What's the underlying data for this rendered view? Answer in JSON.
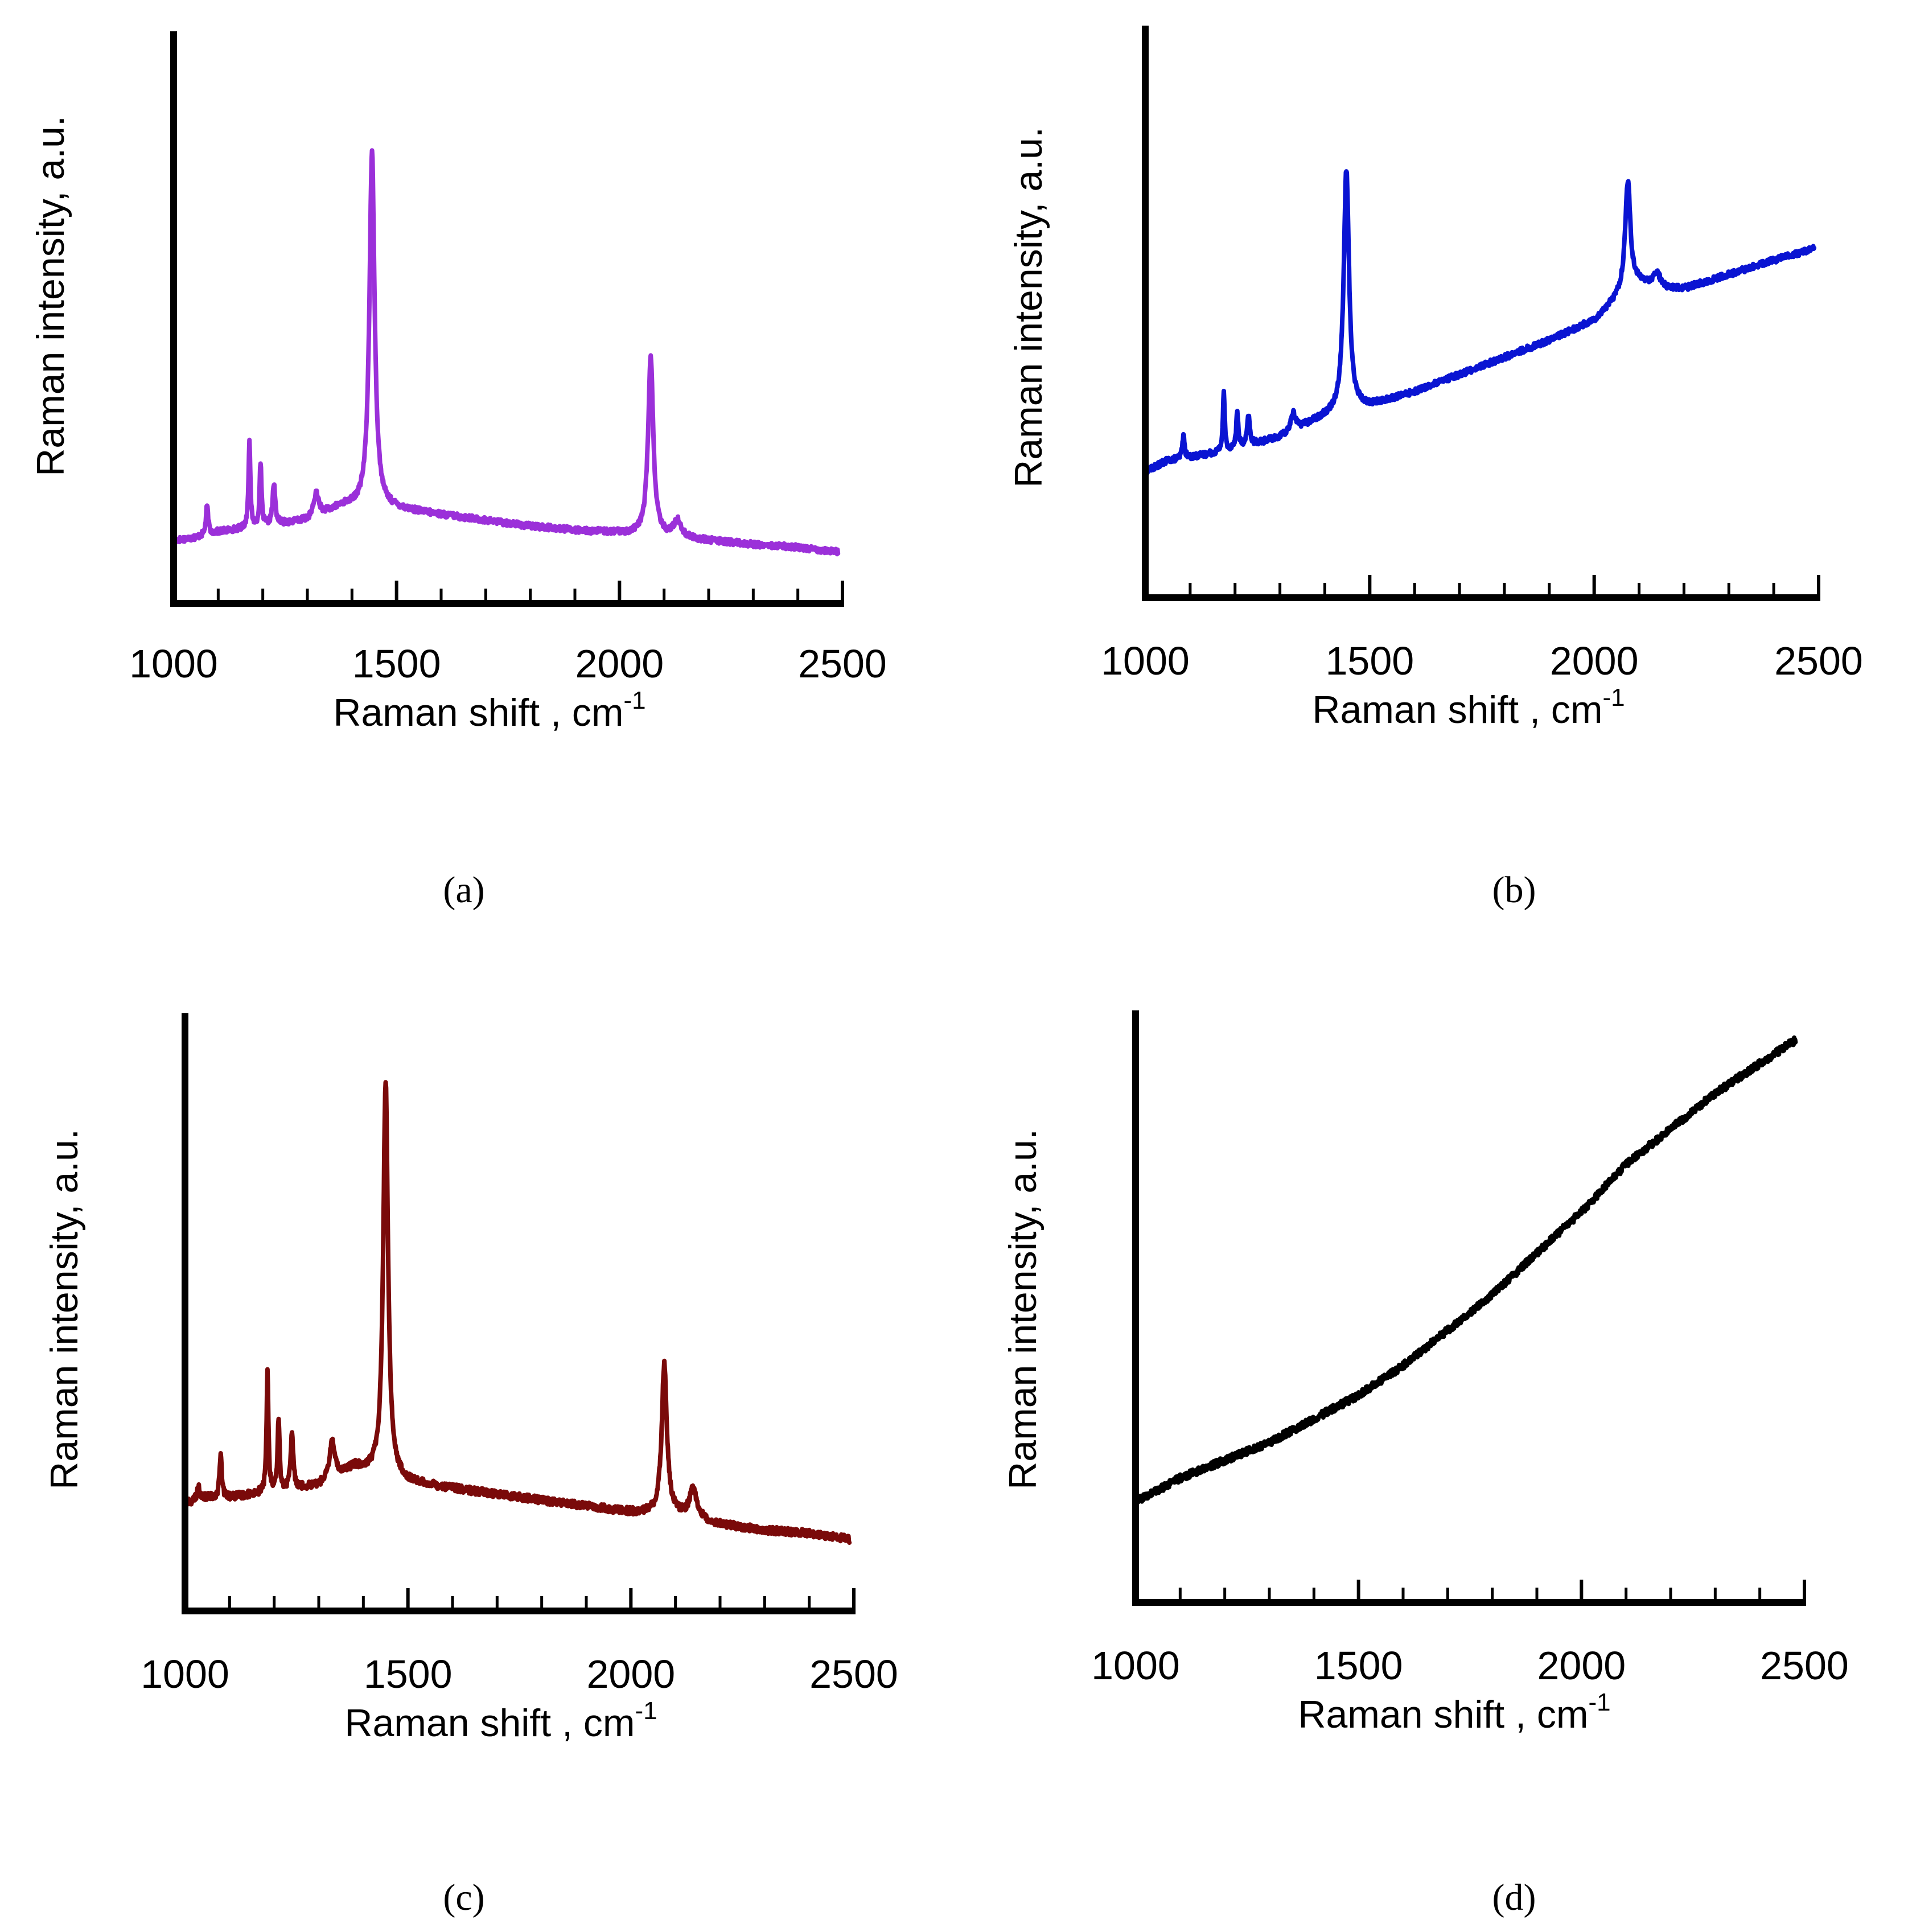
{
  "figure": {
    "panels": [
      "(a)",
      "(b)",
      "(c)",
      "(d)"
    ]
  },
  "chart_data": [
    {
      "type": "line",
      "panel_label": "(a)",
      "panel_letter": "a",
      "color": "#9b30d9",
      "xlabel_main": "Raman shift , cm",
      "xlabel_sup": "-1",
      "ylabel": "Raman intensity, a.u.",
      "xlim": [
        1000,
        2500
      ],
      "ylim": [
        0,
        100
      ],
      "xticks": [
        1000,
        1500,
        2000,
        2500
      ],
      "minor_tick_step": 100,
      "y_tick_labels": false,
      "baseline": [
        [
          1000,
          11
        ],
        [
          1050,
          11.5
        ],
        [
          1100,
          12.5
        ],
        [
          1200,
          13.5
        ],
        [
          1300,
          14.5
        ],
        [
          1380,
          17
        ],
        [
          1500,
          16.5
        ],
        [
          1600,
          15.5
        ],
        [
          1700,
          14.5
        ],
        [
          1800,
          13.5
        ],
        [
          1900,
          12.8
        ],
        [
          2000,
          12.3
        ],
        [
          2100,
          11.6
        ],
        [
          2200,
          11
        ],
        [
          2300,
          10.3
        ],
        [
          2400,
          9.8
        ],
        [
          2490,
          9
        ]
      ],
      "peaks": [
        [
          1075,
          5,
          3
        ],
        [
          1170,
          15,
          2.5
        ],
        [
          1195,
          11,
          2.5
        ],
        [
          1225,
          7,
          3.5
        ],
        [
          1320,
          4,
          7
        ],
        [
          1445,
          62,
          7
        ],
        [
          2070,
          31,
          7
        ],
        [
          2130,
          3,
          10
        ]
      ],
      "noise": 0.5
    },
    {
      "type": "line",
      "panel_label": "(b)",
      "panel_letter": "b",
      "color": "#0a14d2",
      "xlabel_main": "Raman shift , cm",
      "xlabel_sup": "-1",
      "ylabel": "Raman intensity, a.u.",
      "xlim": [
        1000,
        2500
      ],
      "ylim": [
        0,
        100
      ],
      "xticks": [
        1000,
        1500,
        2000,
        2500
      ],
      "minor_tick_step": 100,
      "y_tick_labels": false,
      "baseline": [
        [
          1000,
          22
        ],
        [
          1050,
          24
        ],
        [
          1100,
          24.5
        ],
        [
          1200,
          26
        ],
        [
          1300,
          28
        ],
        [
          1380,
          31
        ],
        [
          1450,
          33
        ],
        [
          1500,
          33.5
        ],
        [
          1600,
          36
        ],
        [
          1700,
          39
        ],
        [
          1800,
          42
        ],
        [
          1900,
          45
        ],
        [
          2000,
          48.5
        ],
        [
          2060,
          53
        ],
        [
          2100,
          55
        ],
        [
          2150,
          54
        ],
        [
          2200,
          54
        ],
        [
          2300,
          56.5
        ],
        [
          2400,
          59
        ],
        [
          2490,
          61
        ]
      ],
      "peaks": [
        [
          1085,
          4,
          3
        ],
        [
          1175,
          10,
          2.5
        ],
        [
          1205,
          6,
          3
        ],
        [
          1230,
          5,
          3.5
        ],
        [
          1330,
          3,
          7
        ],
        [
          1448,
          42,
          7
        ],
        [
          2075,
          19,
          7
        ],
        [
          2140,
          2.5,
          10
        ]
      ],
      "noise": 0.5
    },
    {
      "type": "line",
      "panel_label": "(c)",
      "panel_letter": "c",
      "color": "#7a0a0a",
      "xlabel_main": "Raman shift , cm",
      "xlabel_sup": "-1",
      "ylabel": "Raman intensity, a.u.",
      "xlim": [
        1000,
        2500
      ],
      "ylim": [
        0,
        100
      ],
      "xticks": [
        1000,
        1500,
        2000,
        2500
      ],
      "minor_tick_step": 100,
      "y_tick_labels": false,
      "baseline": [
        [
          1000,
          18
        ],
        [
          1050,
          19
        ],
        [
          1100,
          19
        ],
        [
          1200,
          20
        ],
        [
          1300,
          21
        ],
        [
          1380,
          24
        ],
        [
          1500,
          21.5
        ],
        [
          1600,
          20.5
        ],
        [
          1700,
          19.5
        ],
        [
          1800,
          18.5
        ],
        [
          1900,
          17.5
        ],
        [
          2000,
          16.5
        ],
        [
          2100,
          16
        ],
        [
          2200,
          14.5
        ],
        [
          2300,
          13.5
        ],
        [
          2400,
          13
        ],
        [
          2490,
          12
        ]
      ],
      "peaks": [
        [
          1030,
          2,
          4
        ],
        [
          1080,
          7,
          3
        ],
        [
          1185,
          20,
          2.5
        ],
        [
          1210,
          12,
          2.5
        ],
        [
          1240,
          9,
          3.5
        ],
        [
          1330,
          6,
          7
        ],
        [
          1450,
          66,
          6.5
        ],
        [
          2075,
          25,
          7
        ],
        [
          2140,
          5,
          10
        ]
      ],
      "noise": 0.6
    },
    {
      "type": "line",
      "panel_label": "(d)",
      "panel_letter": "d",
      "color": "#000000",
      "xlabel_main": "Raman shift , cm",
      "xlabel_sup": "-1",
      "ylabel": "Raman intensity, a.u.",
      "xlim": [
        1000,
        2500
      ],
      "ylim": [
        0,
        100
      ],
      "xticks": [
        1000,
        1500,
        2000,
        2500
      ],
      "minor_tick_step": 100,
      "y_tick_labels": false,
      "baseline": [
        [
          1000,
          17
        ],
        [
          1100,
          21
        ],
        [
          1200,
          24
        ],
        [
          1300,
          27
        ],
        [
          1400,
          31
        ],
        [
          1500,
          35
        ],
        [
          1600,
          40
        ],
        [
          1700,
          46
        ],
        [
          1800,
          52
        ],
        [
          1900,
          59
        ],
        [
          2000,
          66
        ],
        [
          2100,
          74
        ],
        [
          2200,
          80
        ],
        [
          2300,
          86
        ],
        [
          2400,
          91
        ],
        [
          2480,
          95
        ]
      ],
      "peaks": [],
      "noise": 0.6
    }
  ]
}
